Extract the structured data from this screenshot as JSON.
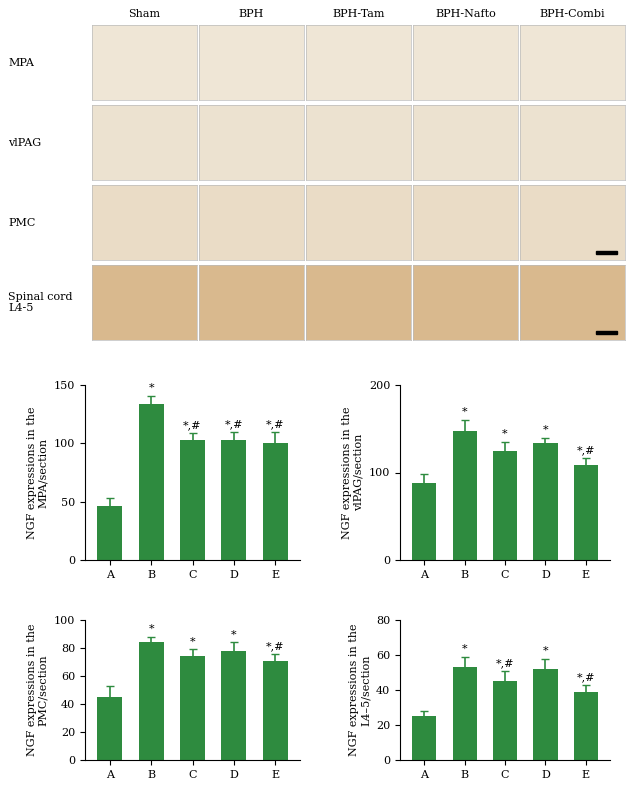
{
  "image_panel": {
    "columns": [
      "Sham",
      "BPH",
      "BPH-Tam",
      "BPH-Nafto",
      "BPH-Combi"
    ],
    "rows": [
      "MPA",
      "vlPAG",
      "PMC",
      "Spinal cord\nL4-5"
    ]
  },
  "chart_data": [
    {
      "type": "bar",
      "ylabel": "NGF expressions in the\nMPA/section",
      "categories": [
        "A",
        "B",
        "C",
        "D",
        "E"
      ],
      "values": [
        46,
        134,
        103,
        103,
        100
      ],
      "errors": [
        7,
        7,
        6,
        7,
        10
      ],
      "annotations": [
        null,
        "*",
        "*,#",
        "*,#",
        "*,#"
      ],
      "color": "#2e8b3f",
      "ylim": [
        0,
        150
      ],
      "yticks": [
        0,
        50,
        100,
        150
      ]
    },
    {
      "type": "bar",
      "ylabel": "NGF expressions in the\nvlPAG/section",
      "categories": [
        "A",
        "B",
        "C",
        "D",
        "E"
      ],
      "values": [
        88,
        147,
        125,
        134,
        109
      ],
      "errors": [
        10,
        13,
        10,
        6,
        8
      ],
      "annotations": [
        null,
        "*",
        "*",
        "*",
        "*,#"
      ],
      "color": "#2e8b3f",
      "ylim": [
        0,
        200
      ],
      "yticks": [
        0,
        100,
        200
      ]
    },
    {
      "type": "bar",
      "ylabel": "NGF expressions in the\nPMC/section",
      "categories": [
        "A",
        "B",
        "C",
        "D",
        "E"
      ],
      "values": [
        45,
        84,
        74,
        78,
        71
      ],
      "errors": [
        8,
        4,
        5,
        6,
        5
      ],
      "annotations": [
        null,
        "*",
        "*",
        "*",
        "*,#"
      ],
      "color": "#2e8b3f",
      "ylim": [
        0,
        100
      ],
      "yticks": [
        0,
        20,
        40,
        60,
        80,
        100
      ]
    },
    {
      "type": "bar",
      "ylabel": "NGF expressions in the\nL4–5/section",
      "categories": [
        "A",
        "B",
        "C",
        "D",
        "E"
      ],
      "values": [
        25,
        53,
        45,
        52,
        39
      ],
      "errors": [
        3,
        6,
        6,
        6,
        4
      ],
      "annotations": [
        null,
        "*",
        "*,#",
        "*",
        "*,#"
      ],
      "color": "#2e8b3f",
      "ylim": [
        0,
        80
      ],
      "yticks": [
        0,
        20,
        40,
        60,
        80
      ]
    }
  ]
}
